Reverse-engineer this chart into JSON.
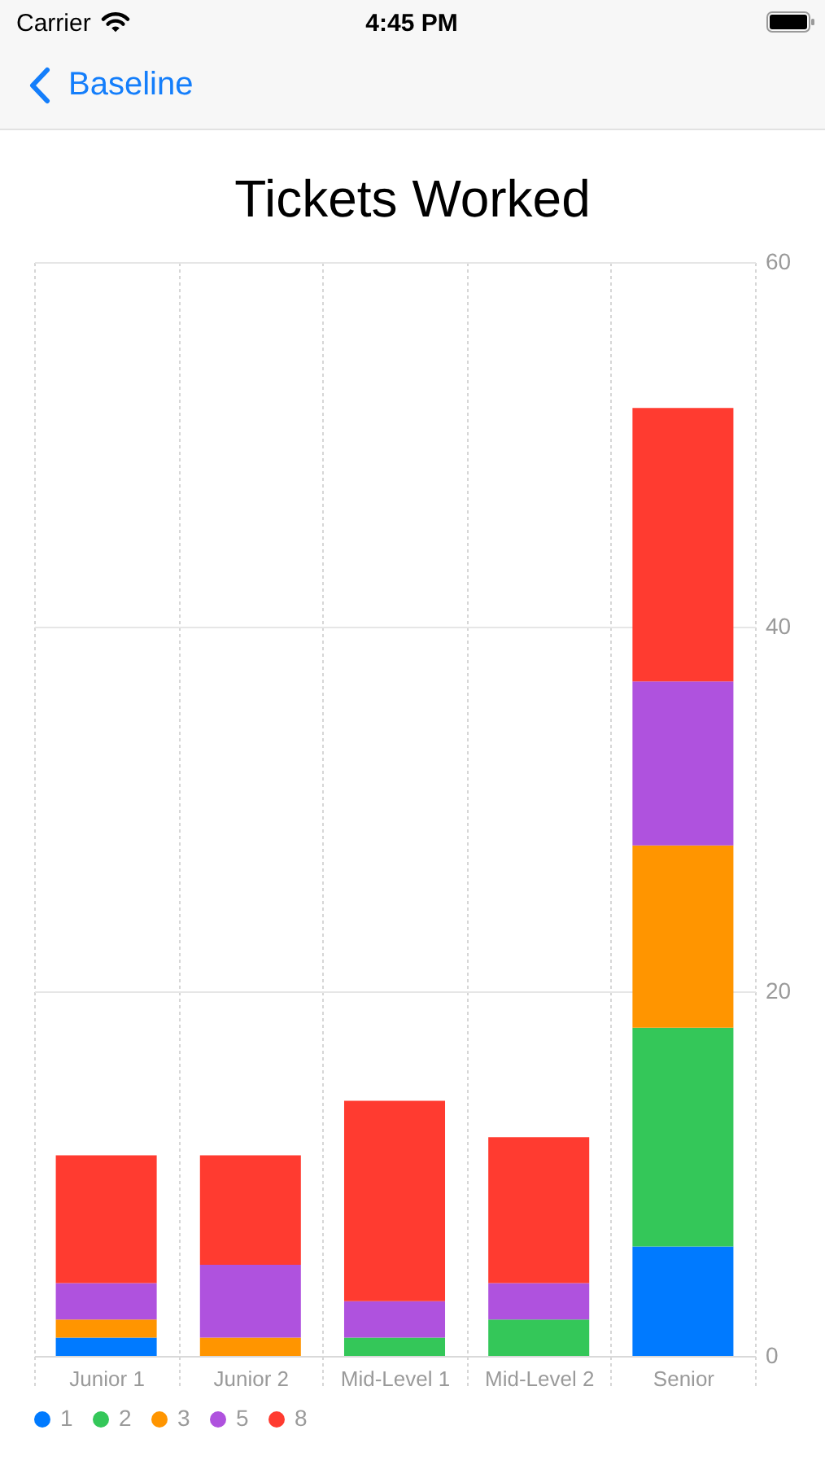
{
  "chart_data": {
    "type": "bar",
    "title": "Tickets Worked",
    "categories": [
      "Junior 1",
      "Junior 2",
      "Mid-Level 1",
      "Mid-Level 2",
      "Senior"
    ],
    "series": [
      {
        "name": "1",
        "color": "#007aff",
        "values": [
          1,
          0,
          0,
          0,
          6
        ]
      },
      {
        "name": "2",
        "color": "#34c759",
        "values": [
          0,
          0,
          1,
          2,
          12
        ]
      },
      {
        "name": "3",
        "color": "#ff9500",
        "values": [
          1,
          1,
          0,
          0,
          10
        ]
      },
      {
        "name": "5",
        "color": "#af52de",
        "values": [
          2,
          4,
          2,
          2,
          9
        ]
      },
      {
        "name": "8",
        "color": "#ff3b30",
        "values": [
          7,
          6,
          11,
          8,
          15
        ]
      }
    ],
    "stacked": true,
    "ylim": [
      0,
      60
    ],
    "yticks": [
      0,
      20,
      40,
      60
    ],
    "grid": true,
    "legend": "bottom left",
    "annotations": [
      "Carrier",
      "4:45 PM",
      "Baseline"
    ]
  }
}
